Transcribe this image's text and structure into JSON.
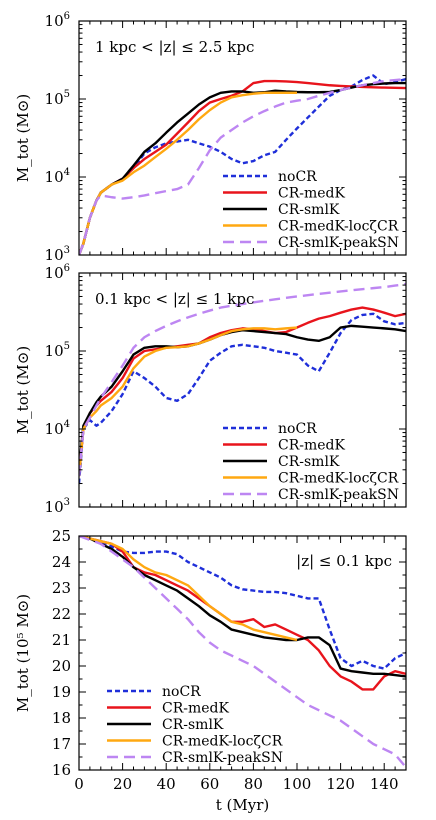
{
  "chart_data": [
    {
      "type": "line",
      "annotation": "1 kpc < |z| ≤ 2.5 kpc",
      "ylabel": "M_tot (M⊙)",
      "yscale": "log",
      "ylim": [
        1000,
        1000000
      ],
      "xlim": [
        0,
        150
      ],
      "ytick_exponents": [
        "3",
        "4",
        "5",
        "6"
      ],
      "legend_placement": "lower-right",
      "series": [
        {
          "name": "noCR",
          "color": "#1f2fd9",
          "dash": "dotted",
          "x": [
            0,
            2,
            5,
            8,
            10,
            15,
            20,
            25,
            30,
            35,
            40,
            45,
            50,
            55,
            60,
            65,
            70,
            75,
            80,
            85,
            90,
            95,
            100,
            105,
            110,
            115,
            120,
            125,
            130,
            135,
            140,
            145,
            150
          ],
          "y": [
            1000,
            1400,
            3000,
            5000,
            6300,
            8000,
            9500,
            13000,
            20000,
            24000,
            27000,
            28500,
            30000,
            27000,
            24500,
            21000,
            17000,
            15000,
            16000,
            19000,
            21000,
            30000,
            42000,
            58000,
            80000,
            110000,
            130000,
            145000,
            175000,
            200000,
            155000,
            165000,
            180000
          ]
        },
        {
          "name": "CR-medK",
          "color": "#e8141c",
          "dash": "solid",
          "x": [
            0,
            2,
            5,
            8,
            10,
            15,
            20,
            25,
            30,
            35,
            40,
            45,
            50,
            55,
            60,
            65,
            70,
            75,
            80,
            85,
            90,
            95,
            100,
            105,
            110,
            115,
            120,
            125,
            130,
            135,
            140,
            145,
            150
          ],
          "y": [
            1000,
            1400,
            3000,
            5000,
            6300,
            8000,
            9500,
            13000,
            17000,
            21000,
            26000,
            36000,
            50000,
            70000,
            90000,
            100000,
            110000,
            125000,
            160000,
            170000,
            170000,
            168000,
            165000,
            160000,
            155000,
            150000,
            147000,
            145000,
            143000,
            141000,
            140000,
            139000,
            138000
          ]
        },
        {
          "name": "CR-smlK",
          "color": "#000000",
          "dash": "solid",
          "x": [
            0,
            2,
            5,
            8,
            10,
            15,
            20,
            25,
            30,
            35,
            40,
            45,
            50,
            55,
            60,
            65,
            70,
            75,
            80,
            85,
            90,
            95,
            100,
            105,
            110,
            115,
            120,
            125,
            130,
            135,
            140,
            145,
            150
          ],
          "y": [
            1000,
            1400,
            3000,
            5000,
            6300,
            8000,
            9500,
            14000,
            21000,
            27000,
            37000,
            50000,
            65000,
            85000,
            105000,
            120000,
            125000,
            125000,
            120000,
            122000,
            128000,
            125000,
            123000,
            122000,
            122000,
            123000,
            130000,
            140000,
            150000,
            155000,
            158000,
            160000,
            160000
          ]
        },
        {
          "name": "CR-medK-locζCR",
          "color": "#ffa811",
          "dash": "solid",
          "x": [
            0,
            2,
            5,
            8,
            10,
            15,
            20,
            25,
            30,
            35,
            40,
            45,
            50,
            55,
            60,
            65,
            70,
            75,
            80,
            85,
            90,
            95,
            100
          ],
          "y": [
            1000,
            1400,
            3000,
            5000,
            6300,
            8000,
            9000,
            11500,
            14000,
            18000,
            23000,
            30000,
            40000,
            55000,
            72000,
            90000,
            105000,
            112000,
            117000,
            120000,
            120000,
            120000,
            120000
          ]
        },
        {
          "name": "CR-smlK-peakSN",
          "color": "#bd86f2",
          "dash": "dashed",
          "x": [
            0,
            2,
            5,
            8,
            10,
            15,
            20,
            25,
            30,
            35,
            40,
            45,
            50,
            55,
            60,
            65,
            70,
            75,
            80,
            85,
            90,
            95,
            100,
            105,
            110,
            115,
            120,
            125,
            130,
            135,
            140,
            145,
            150
          ],
          "y": [
            1000,
            1400,
            3000,
            5000,
            5800,
            5500,
            5300,
            5500,
            5800,
            6200,
            6600,
            7000,
            8000,
            13000,
            22000,
            32000,
            40000,
            50000,
            60000,
            70000,
            80000,
            90000,
            95000,
            100000,
            110000,
            120000,
            130000,
            140000,
            150000,
            160000,
            170000,
            175000,
            180000
          ]
        }
      ]
    },
    {
      "type": "line",
      "annotation": "0.1 kpc < |z| ≤ 1 kpc",
      "ylabel": "M_tot (M⊙)",
      "yscale": "log",
      "ylim": [
        1000,
        1000000
      ],
      "xlim": [
        0,
        150
      ],
      "ytick_exponents": [
        "3",
        "4",
        "5",
        "6"
      ],
      "legend_placement": "lower-right",
      "series": [
        {
          "name": "noCR",
          "color": "#1f2fd9",
          "dash": "dotted",
          "x": [
            0,
            2,
            5,
            8,
            10,
            15,
            20,
            25,
            30,
            35,
            40,
            45,
            50,
            55,
            60,
            65,
            70,
            75,
            80,
            85,
            90,
            95,
            100,
            105,
            110,
            115,
            120,
            125,
            130,
            135,
            140,
            145,
            150
          ],
          "y": [
            2000,
            10000,
            13000,
            11000,
            12000,
            17000,
            28000,
            55000,
            45000,
            35000,
            25000,
            23000,
            28000,
            45000,
            75000,
            95000,
            115000,
            120000,
            115000,
            110000,
            100000,
            95000,
            90000,
            65000,
            55000,
            95000,
            170000,
            250000,
            290000,
            300000,
            240000,
            220000,
            230000
          ]
        },
        {
          "name": "CR-medK",
          "color": "#e8141c",
          "dash": "solid",
          "x": [
            0,
            2,
            5,
            8,
            10,
            15,
            20,
            25,
            30,
            35,
            40,
            45,
            50,
            55,
            60,
            65,
            70,
            75,
            80,
            85,
            90,
            95,
            100,
            105,
            110,
            115,
            120,
            125,
            130,
            135,
            140,
            145,
            150
          ],
          "y": [
            2500,
            10000,
            16000,
            20000,
            23000,
            30000,
            45000,
            80000,
            100000,
            105000,
            110000,
            115000,
            120000,
            125000,
            150000,
            170000,
            185000,
            195000,
            190000,
            180000,
            170000,
            175000,
            200000,
            230000,
            260000,
            280000,
            310000,
            340000,
            360000,
            340000,
            310000,
            280000,
            300000
          ]
        },
        {
          "name": "CR-smlK",
          "color": "#000000",
          "dash": "solid",
          "x": [
            0,
            2,
            5,
            8,
            10,
            15,
            20,
            25,
            30,
            35,
            40,
            45,
            50,
            55,
            60,
            65,
            70,
            75,
            80,
            85,
            90,
            95,
            100,
            105,
            110,
            115,
            120,
            125,
            130,
            135,
            140,
            145,
            150
          ],
          "y": [
            3000,
            11000,
            16000,
            22000,
            26000,
            35000,
            55000,
            90000,
            110000,
            115000,
            115000,
            112000,
            115000,
            125000,
            140000,
            160000,
            175000,
            185000,
            180000,
            175000,
            170000,
            165000,
            150000,
            140000,
            135000,
            150000,
            200000,
            210000,
            205000,
            200000,
            195000,
            190000,
            180000
          ]
        },
        {
          "name": "CR-medK-locζCR",
          "color": "#ffa811",
          "dash": "solid",
          "x": [
            0,
            2,
            5,
            8,
            10,
            15,
            20,
            25,
            30,
            35,
            40,
            45,
            50,
            55,
            60,
            65,
            70,
            75,
            80,
            85,
            90,
            95,
            100
          ],
          "y": [
            2500,
            10000,
            14000,
            17000,
            20000,
            25000,
            35000,
            60000,
            85000,
            100000,
            110000,
            112000,
            115000,
            125000,
            140000,
            160000,
            180000,
            190000,
            195000,
            195000,
            190000,
            195000,
            200000
          ]
        },
        {
          "name": "CR-smlK-peakSN",
          "color": "#bd86f2",
          "dash": "dashed",
          "x": [
            0,
            2,
            5,
            8,
            10,
            15,
            20,
            25,
            30,
            35,
            40,
            45,
            50,
            55,
            60,
            65,
            70,
            75,
            80,
            85,
            90,
            95,
            100,
            105,
            110,
            115,
            120,
            125,
            130,
            135,
            140,
            145,
            150
          ],
          "y": [
            2500,
            10000,
            14000,
            20000,
            25000,
            40000,
            65000,
            110000,
            150000,
            180000,
            210000,
            240000,
            270000,
            300000,
            330000,
            360000,
            380000,
            400000,
            420000,
            440000,
            460000,
            480000,
            500000,
            520000,
            540000,
            560000,
            580000,
            600000,
            620000,
            640000,
            660000,
            690000,
            720000
          ]
        }
      ]
    },
    {
      "type": "line",
      "annotation": "|z| ≤ 0.1 kpc",
      "ylabel": "M_tot (10⁵ M⊙)",
      "yscale": "linear",
      "ylim": [
        16,
        25
      ],
      "xlim": [
        0,
        150
      ],
      "xlabel": "t (Myr)",
      "yticks": [
        "16",
        "17",
        "18",
        "19",
        "20",
        "21",
        "22",
        "23",
        "24",
        "25"
      ],
      "xticks": [
        "0",
        "20",
        "40",
        "60",
        "80",
        "100",
        "120",
        "140"
      ],
      "legend_placement": "lower-left",
      "series": [
        {
          "name": "noCR",
          "color": "#1f2fd9",
          "dash": "dotted",
          "x": [
            0,
            5,
            10,
            15,
            20,
            25,
            30,
            35,
            40,
            45,
            50,
            55,
            60,
            65,
            70,
            75,
            80,
            85,
            90,
            95,
            100,
            105,
            110,
            115,
            120,
            125,
            130,
            135,
            140,
            145,
            150
          ],
          "y": [
            25,
            24.9,
            24.8,
            24.6,
            24.4,
            24.35,
            24.35,
            24.4,
            24.4,
            24.3,
            24.0,
            23.8,
            23.6,
            23.4,
            23.1,
            22.95,
            22.9,
            22.85,
            22.85,
            22.8,
            22.7,
            22.6,
            22.6,
            21.4,
            20.3,
            20.0,
            20.2,
            20.0,
            19.9,
            20.3,
            20.5
          ]
        },
        {
          "name": "CR-medK",
          "color": "#e8141c",
          "dash": "solid",
          "x": [
            0,
            5,
            10,
            15,
            20,
            25,
            30,
            35,
            40,
            45,
            50,
            55,
            60,
            65,
            70,
            75,
            80,
            85,
            90,
            95,
            100,
            105,
            110,
            115,
            120,
            125,
            130,
            135,
            140,
            145,
            150
          ],
          "y": [
            25,
            24.9,
            24.8,
            24.7,
            24.4,
            23.8,
            23.6,
            23.5,
            23.3,
            23.1,
            22.9,
            22.6,
            22.3,
            22.0,
            21.7,
            21.7,
            21.8,
            21.5,
            21.6,
            21.4,
            21.2,
            21.0,
            20.6,
            20.0,
            19.6,
            19.4,
            19.1,
            19.1,
            19.6,
            19.8,
            19.7
          ]
        },
        {
          "name": "CR-smlK",
          "color": "#000000",
          "dash": "solid",
          "x": [
            0,
            5,
            10,
            15,
            20,
            25,
            30,
            35,
            40,
            45,
            50,
            55,
            60,
            65,
            70,
            75,
            80,
            85,
            90,
            95,
            100,
            105,
            110,
            115,
            120,
            125,
            130,
            135,
            140,
            145,
            150
          ],
          "y": [
            25,
            24.9,
            24.7,
            24.5,
            24.2,
            23.8,
            23.5,
            23.3,
            23.1,
            22.9,
            22.6,
            22.3,
            21.95,
            21.7,
            21.4,
            21.3,
            21.2,
            21.1,
            21.05,
            21.0,
            21.0,
            21.1,
            21.1,
            20.8,
            19.9,
            19.8,
            19.75,
            19.7,
            19.7,
            19.65,
            19.6
          ]
        },
        {
          "name": "CR-medK-locζCR",
          "color": "#ffa811",
          "dash": "solid",
          "x": [
            0,
            5,
            10,
            15,
            20,
            25,
            30,
            35,
            40,
            45,
            50,
            55,
            60,
            65,
            70,
            75,
            80,
            85,
            90,
            95,
            100
          ],
          "y": [
            25,
            24.9,
            24.8,
            24.7,
            24.5,
            24.1,
            23.8,
            23.6,
            23.5,
            23.3,
            23.1,
            22.7,
            22.3,
            22.0,
            21.7,
            21.6,
            21.4,
            21.3,
            21.2,
            21.1,
            21.0
          ]
        },
        {
          "name": "CR-smlK-peakSN",
          "color": "#bd86f2",
          "dash": "dashed",
          "x": [
            0,
            5,
            10,
            15,
            20,
            25,
            30,
            35,
            40,
            45,
            50,
            55,
            60,
            65,
            70,
            75,
            80,
            85,
            90,
            95,
            100,
            105,
            110,
            115,
            120,
            125,
            130,
            135,
            140,
            145,
            150
          ],
          "y": [
            25,
            24.85,
            24.7,
            24.4,
            24.1,
            23.8,
            23.4,
            23.0,
            22.6,
            22.2,
            21.8,
            21.3,
            20.9,
            20.6,
            20.4,
            20.2,
            20.0,
            19.7,
            19.4,
            19.1,
            18.8,
            18.5,
            18.3,
            18.1,
            17.9,
            17.6,
            17.3,
            17.0,
            16.8,
            16.6,
            16.1
          ]
        }
      ]
    }
  ]
}
